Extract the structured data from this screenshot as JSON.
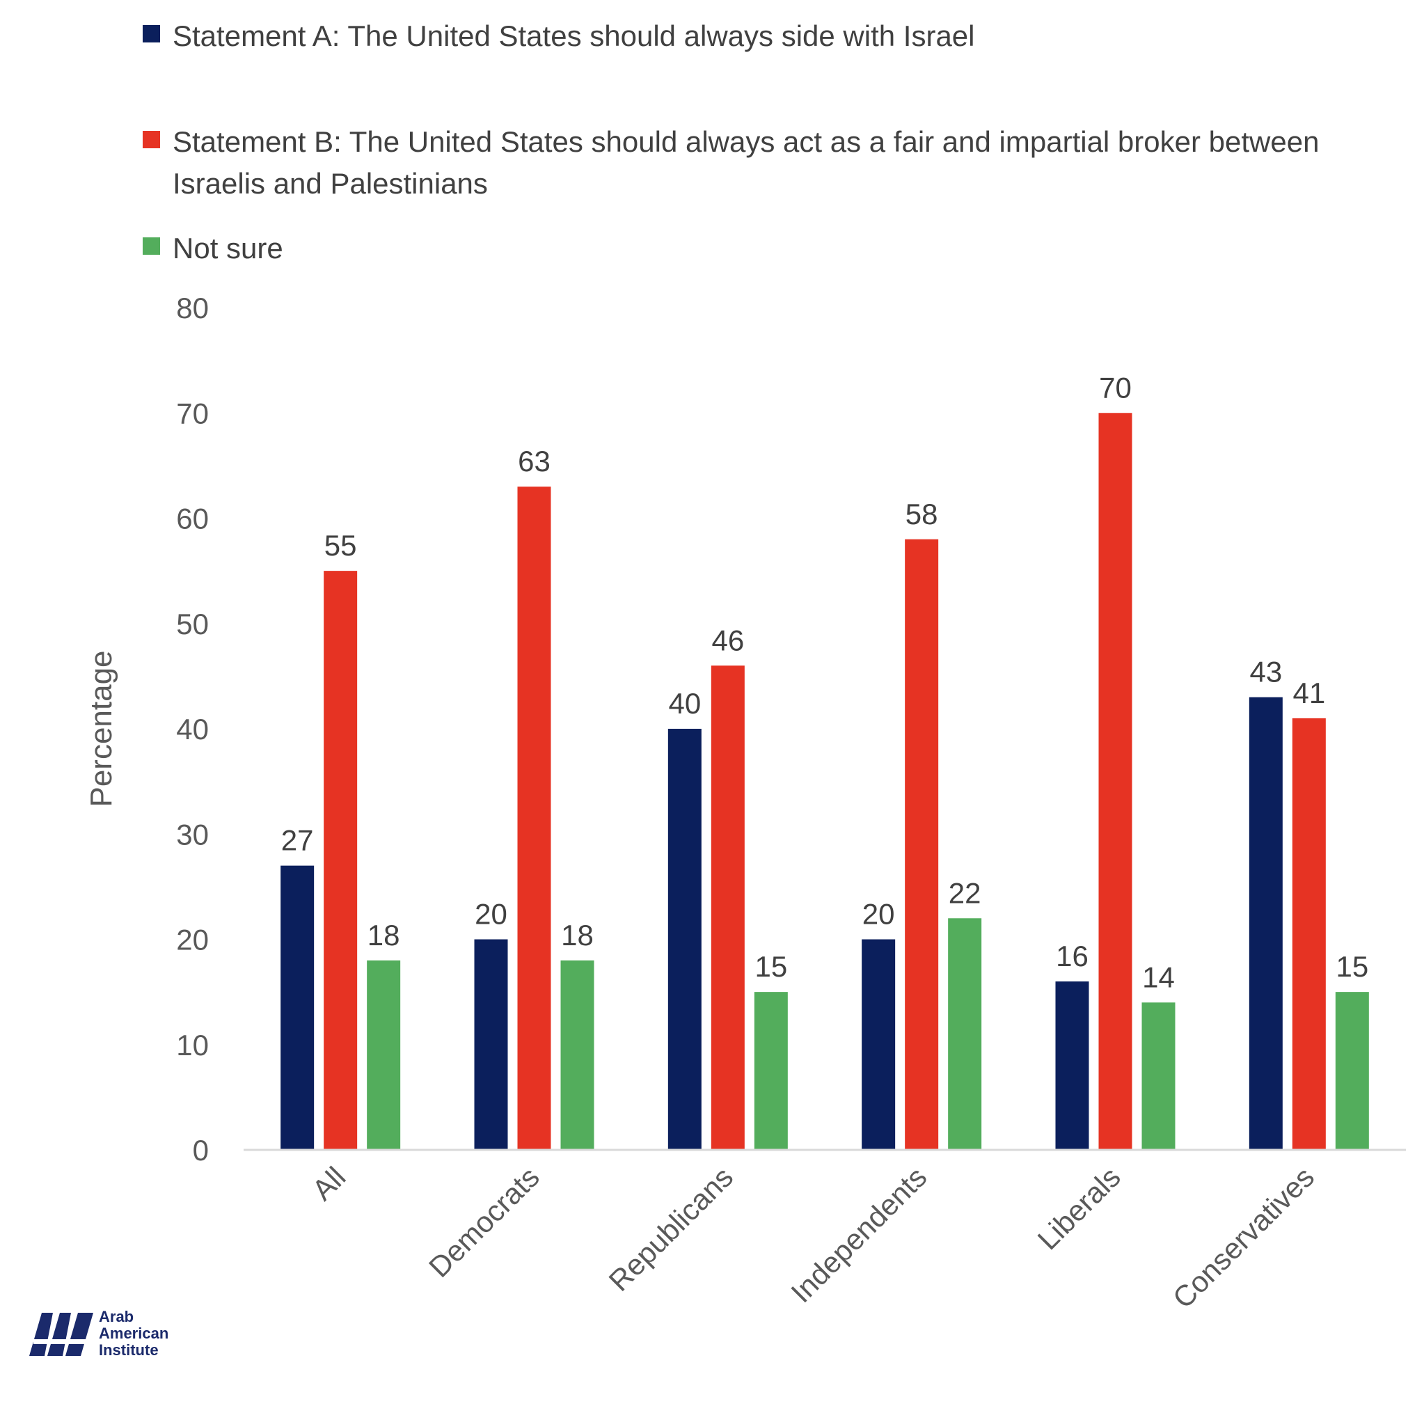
{
  "chart_data": {
    "type": "bar",
    "categories": [
      "All",
      "Democrats",
      "Republicans",
      "Independents",
      "Liberals",
      "Conservatives"
    ],
    "series": [
      {
        "name": "Statement A: The United States should always side with Israel",
        "color": "#0b1f5c",
        "values": [
          27,
          20,
          40,
          20,
          16,
          43
        ]
      },
      {
        "name": "Statement B: The United States should always act as a fair and impartial broker between Israelis and Palestinians",
        "color": "#e63323",
        "values": [
          55,
          63,
          46,
          58,
          70,
          41
        ]
      },
      {
        "name": "Not sure",
        "color": "#53ad5c",
        "values": [
          18,
          18,
          15,
          22,
          14,
          15
        ]
      }
    ],
    "ylabel": "Percentage",
    "xlabel": "",
    "ylim": [
      0,
      80
    ],
    "yticks": [
      0,
      10,
      20,
      30,
      40,
      50,
      60,
      70,
      80
    ],
    "grid": false,
    "legend_position": "top",
    "data_labels": true
  },
  "logo": {
    "lines": [
      "Arab",
      "American",
      "Institute"
    ],
    "color": "#1b2a6b"
  }
}
